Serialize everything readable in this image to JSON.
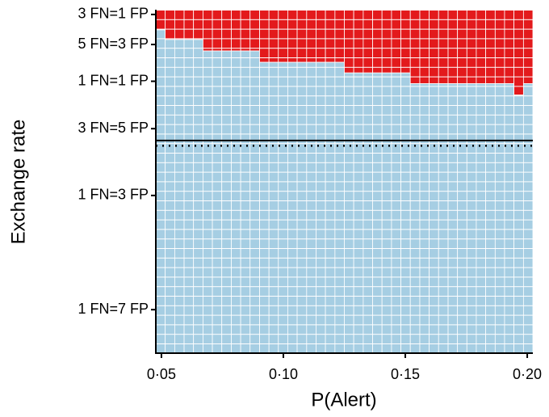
{
  "chart_data": {
    "type": "heatmap",
    "x_label": "P(Alert)",
    "y_label": "Exchange rate",
    "xlim": [
      0.0477,
      0.2023
    ],
    "ylim": [
      0.096,
      0.772
    ],
    "y_scale": "log",
    "xticks": [
      {
        "value": 0.05,
        "label": "0·05"
      },
      {
        "value": 0.1,
        "label": "0·10"
      },
      {
        "value": 0.15,
        "label": "0·15"
      },
      {
        "value": 0.2,
        "label": "0·20"
      }
    ],
    "yticks": [
      {
        "value": 0.75,
        "label": "3 FN=1 FP"
      },
      {
        "value": 0.625,
        "label": "5 FN=3 FP"
      },
      {
        "value": 0.5,
        "label": "1 FN=1 FP"
      },
      {
        "value": 0.375,
        "label": "3 FN=5 FP"
      },
      {
        "value": 0.25,
        "label": "1 FN=3 FP"
      },
      {
        "value": 0.125,
        "label": "1 FN=7 FP"
      }
    ],
    "x": [
      0.0496,
      0.0535,
      0.0574,
      0.0612,
      0.0651,
      0.069,
      0.0728,
      0.0767,
      0.0806,
      0.0844,
      0.0883,
      0.0922,
      0.096,
      0.0999,
      0.1037,
      0.1076,
      0.1115,
      0.1153,
      0.1192,
      0.1231,
      0.1269,
      0.1308,
      0.1347,
      0.1385,
      0.1424,
      0.1463,
      0.1501,
      0.154,
      0.1579,
      0.1617,
      0.1656,
      0.1695,
      0.1733,
      0.1772,
      0.181,
      0.1849,
      0.1888,
      0.1926,
      0.1965,
      0.2004
    ],
    "boundary": [
      0.683,
      0.644,
      0.644,
      0.644,
      0.644,
      0.601,
      0.601,
      0.601,
      0.601,
      0.601,
      0.601,
      0.561,
      0.561,
      0.561,
      0.561,
      0.561,
      0.561,
      0.561,
      0.561,
      0.561,
      0.526,
      0.526,
      0.526,
      0.526,
      0.526,
      0.526,
      0.526,
      0.493,
      0.493,
      0.493,
      0.493,
      0.493,
      0.493,
      0.493,
      0.493,
      0.493,
      0.493,
      0.493,
      0.46,
      0.493
    ],
    "color_above": "#e31a1c",
    "color_below": "#a6cee3",
    "hlines": [
      {
        "value": 0.349,
        "style": "solid"
      },
      {
        "value": 0.338,
        "style": "dotted"
      }
    ]
  }
}
